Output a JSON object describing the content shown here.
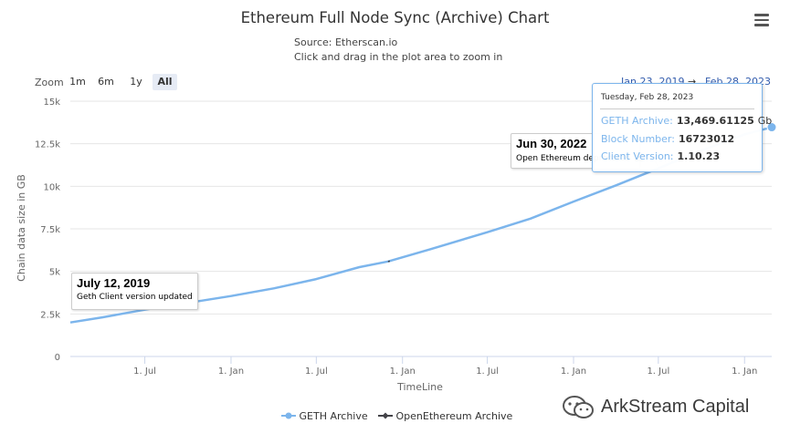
{
  "header": {
    "title": "Ethereum Full Node Sync (Archive) Chart",
    "source": "Source: Etherscan.io",
    "hint": "Click and drag in the plot area to zoom in"
  },
  "zoom": {
    "label": "Zoom",
    "buttons": [
      "1m",
      "6m",
      "1y",
      "All"
    ],
    "active": "All"
  },
  "range": {
    "from": "Jan 23, 2019",
    "separator": "→",
    "to": "Feb 28, 2023"
  },
  "tooltip": {
    "date": "Tuesday, Feb 28, 2023",
    "rows": [
      {
        "key": "GETH Archive:",
        "value": "13,469.61125",
        "unit": "Gb"
      },
      {
        "key": "Block Number:",
        "value": "16723012",
        "unit": ""
      },
      {
        "key": "Client Version:",
        "value": "1.10.23",
        "unit": ""
      }
    ]
  },
  "annotations": [
    {
      "title": "July 12, 2019",
      "text": "Geth Client version updated",
      "date": "2019-07-12",
      "value": 2850
    },
    {
      "title": "Jun 30, 2022",
      "text": "Open Ethereum deprecated",
      "date": "2022-06-30",
      "value": 11200
    }
  ],
  "colors": {
    "geth": "#7cb5ec",
    "openethereum": "#434348",
    "grid": "#e6e6e6",
    "axis": "#ccd6eb"
  },
  "icons": {
    "menu": "hamburger-menu-icon",
    "external_link": "external-link-icon",
    "watermark": "wechat-logo-icon"
  },
  "watermark": {
    "text": "ArkStream Capital"
  },
  "chart_data": {
    "type": "line",
    "title": "Ethereum Full Node Sync (Archive) Chart",
    "subtitle": "Source: Etherscan.io",
    "xlabel": "TimeLine",
    "ylabel": "Chain data size in GB",
    "x_range": [
      "2019-01-23",
      "2023-02-28"
    ],
    "ylim": [
      0,
      15000
    ],
    "y_ticks": [
      0,
      2500,
      5000,
      7500,
      10000,
      12500,
      15000
    ],
    "y_tick_labels": [
      "0",
      "2.5k",
      "5k",
      "7.5k",
      "10k",
      "12.5k",
      "15k"
    ],
    "x_ticks": [
      "2019-07-01",
      "2020-01-01",
      "2020-07-01",
      "2021-01-01",
      "2021-07-01",
      "2022-01-01",
      "2022-07-01",
      "2023-01-01"
    ],
    "x_tick_labels": [
      "1. Jul",
      "1. Jan",
      "1. Jul",
      "1. Jan",
      "1. Jul",
      "1. Jan",
      "1. Jul",
      "1. Jan"
    ],
    "grid": true,
    "legend": "bottom-center",
    "series": [
      {
        "name": "GETH Archive",
        "points": [
          [
            "2019-01-23",
            2000
          ],
          [
            "2019-04-01",
            2300
          ],
          [
            "2019-07-01",
            2750
          ],
          [
            "2019-10-01",
            3150
          ],
          [
            "2020-01-01",
            3550
          ],
          [
            "2020-04-01",
            4000
          ],
          [
            "2020-07-01",
            4550
          ],
          [
            "2020-10-01",
            5250
          ],
          [
            "2020-12-01",
            5580
          ],
          [
            "2021-03-01",
            6300
          ],
          [
            "2021-07-01",
            7300
          ],
          [
            "2021-10-01",
            8100
          ],
          [
            "2022-01-01",
            9100
          ],
          [
            "2022-04-01",
            10050
          ],
          [
            "2022-07-01",
            11050
          ],
          [
            "2022-10-01",
            12100
          ],
          [
            "2023-01-01",
            13050
          ],
          [
            "2023-02-28",
            13470
          ]
        ]
      },
      {
        "name": "OpenEthereum Archive",
        "points": [
          [
            "2020-12-01",
            5580
          ],
          [
            "2020-12-05",
            5600
          ]
        ]
      }
    ]
  }
}
